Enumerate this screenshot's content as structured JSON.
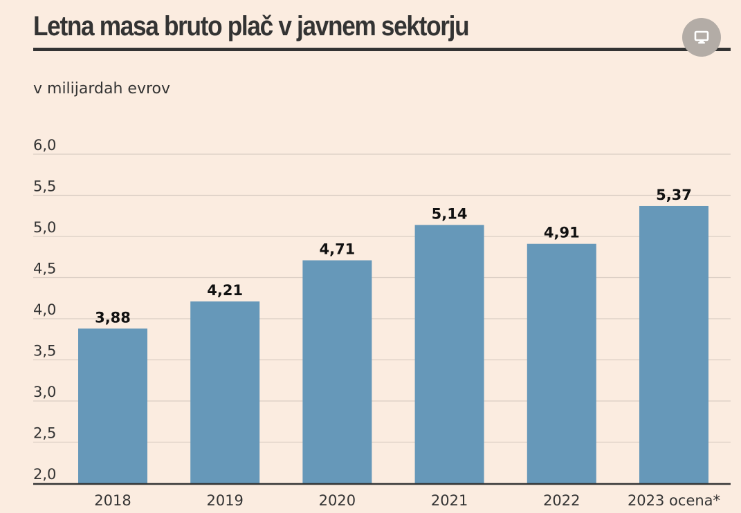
{
  "header": {
    "title": "Letna masa bruto plač v javnem sektorju",
    "share_icon": "monitor-icon"
  },
  "colors": {
    "background": "#fbece0",
    "bar": "#6698b9",
    "grid": "#d9cdc3",
    "axis": "#333333"
  },
  "chart_data": {
    "type": "bar",
    "title": "Letna masa bruto plač v javnem sektorju",
    "subtitle": "v milijardah evrov",
    "categories": [
      "2018",
      "2019",
      "2020",
      "2021",
      "2022",
      "2023 ocena*"
    ],
    "values": [
      3.88,
      4.21,
      4.71,
      5.14,
      4.91,
      5.37
    ],
    "data_labels": [
      "3,88",
      "4,21",
      "4,71",
      "5,14",
      "4,91",
      "5,37"
    ],
    "ylim": [
      2.0,
      6.0
    ],
    "yticks": [
      2.0,
      2.5,
      3.0,
      3.5,
      4.0,
      4.5,
      5.0,
      5.5,
      6.0
    ],
    "ytick_labels": [
      "2,0",
      "2,5",
      "3,0",
      "3,5",
      "4,0",
      "4,5",
      "5,0",
      "5,5",
      "6,0"
    ],
    "xlabel": "",
    "ylabel": "",
    "grid": true,
    "legend": "none"
  }
}
